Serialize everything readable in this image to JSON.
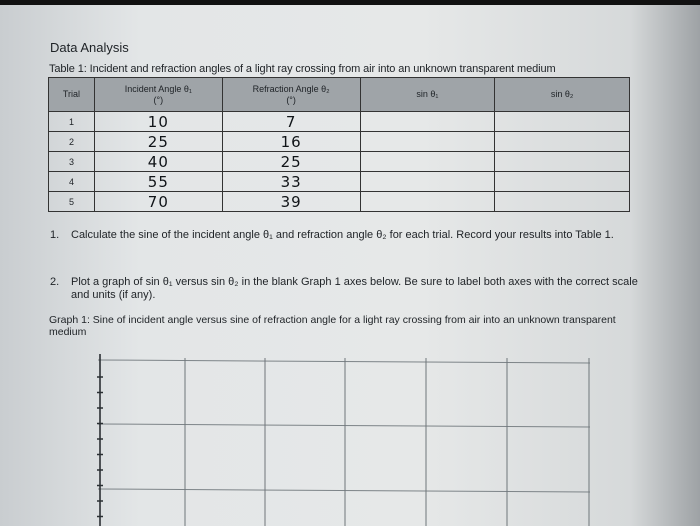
{
  "heading": "Data Analysis",
  "table": {
    "caption": "Table 1: Incident and refraction angles of a light ray crossing from air into an unknown transparent medium",
    "headers": [
      {
        "label": "Trial",
        "unit": ""
      },
      {
        "label": "Incident Angle θ₁",
        "unit": "(°)"
      },
      {
        "label": "Refraction Angle θ₂",
        "unit": "(°)"
      },
      {
        "label": "sin θ₁",
        "unit": ""
      },
      {
        "label": "sin θ₂",
        "unit": ""
      }
    ],
    "rows": [
      {
        "trial": "1",
        "incident": "10",
        "refraction": "7",
        "sin1": "",
        "sin2": ""
      },
      {
        "trial": "2",
        "incident": "25",
        "refraction": "16",
        "sin1": "",
        "sin2": ""
      },
      {
        "trial": "3",
        "incident": "40",
        "refraction": "25",
        "sin1": "",
        "sin2": ""
      },
      {
        "trial": "4",
        "incident": "55",
        "refraction": "33",
        "sin1": "",
        "sin2": ""
      },
      {
        "trial": "5",
        "incident": "70",
        "refraction": "39",
        "sin1": "",
        "sin2": ""
      }
    ]
  },
  "questions": [
    {
      "number": "1.",
      "text": "Calculate the sine of the incident angle θ₁ and refraction angle θ₂ for each trial. Record your results into Table 1."
    },
    {
      "number": "2.",
      "text": "Plot a graph of sin θ₁ versus sin θ₂ in the blank Graph 1 axes below. Be sure to label both axes with the correct scale and units (if any)."
    }
  ],
  "graph_caption": "Graph 1: Sine of incident angle versus sine of refraction angle for a light ray crossing from air into an unknown transparent medium"
}
